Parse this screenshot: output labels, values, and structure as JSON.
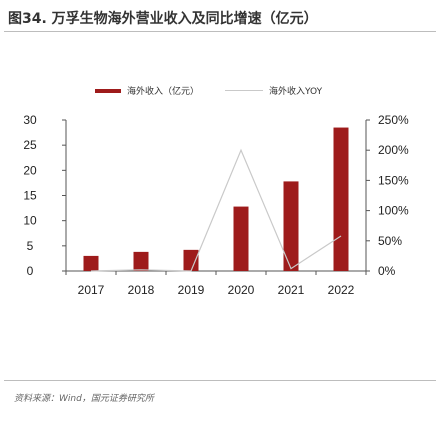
{
  "title": "图34. 万孚生物海外营业收入及同比增速（亿元）",
  "footer": "资料来源：Wind，国元证券研究所",
  "chart_data": {
    "type": "bar",
    "categories": [
      "2017",
      "2018",
      "2019",
      "2020",
      "2021",
      "2022"
    ],
    "series": [
      {
        "name": "海外收入（亿元）",
        "type": "bar",
        "axis": "left",
        "color": "#9e1b1b",
        "values": [
          3.0,
          3.8,
          4.2,
          12.8,
          17.8,
          28.5
        ]
      },
      {
        "name": "海外收入YOY",
        "type": "line",
        "axis": "right",
        "color": "#c9c9c9",
        "values": [
          0.0,
          0.02,
          0.0,
          2.0,
          0.04,
          0.58
        ]
      }
    ],
    "yAxisLeft": {
      "min": 0,
      "max": 30,
      "ticks": [
        "0",
        "5",
        "10",
        "15",
        "20",
        "25",
        "30"
      ]
    },
    "yAxisRight": {
      "min": 0,
      "max": 2.5,
      "ticks": [
        "0%",
        "50%",
        "100%",
        "150%",
        "200%",
        "250%"
      ]
    },
    "legend_position": "top"
  }
}
